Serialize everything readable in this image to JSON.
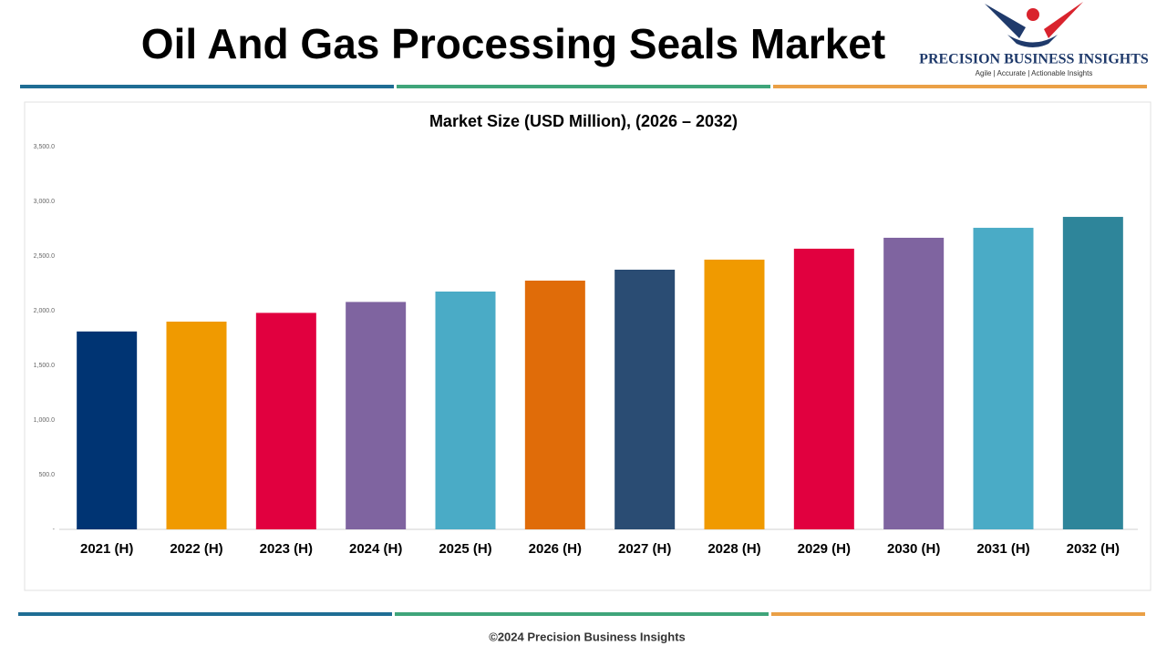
{
  "header": {
    "title": "Oil And Gas Processing Seals Market"
  },
  "logo": {
    "name": "PRECISION BUSINESS INSIGHTS",
    "tagline": "Agile | Accurate | Actionable Insights"
  },
  "footer": "©2024 Precision Business Insights",
  "chart_data": {
    "type": "bar",
    "title": "Market Size (USD Million), (2026 – 2032)",
    "categories": [
      "2021 (H)",
      "2022 (H)",
      "2023 (H)",
      "2024 (H)",
      "2025 (H)",
      "2026 (H)",
      "2027 (H)",
      "2028 (H)",
      "2029 (H)",
      "2030 (H)",
      "2031 (H)",
      "2032 (H)"
    ],
    "values": [
      1810,
      1900,
      1980,
      2080,
      2175,
      2275,
      2375,
      2467,
      2567,
      2667,
      2758,
      2858
    ],
    "colors": [
      "#003473",
      "#f09a00",
      "#e1003f",
      "#7f64a0",
      "#4aabc6",
      "#e06c09",
      "#2a4c73",
      "#f09a00",
      "#e1003f",
      "#7f64a0",
      "#4aabc6",
      "#2e859a"
    ],
    "ylim": [
      0,
      3500
    ],
    "yticks": [
      {
        "value": 0,
        "label": "-"
      },
      {
        "value": 500,
        "label": "500.0"
      },
      {
        "value": 1000,
        "label": "1,000.0"
      },
      {
        "value": 1500,
        "label": "1,500.0"
      },
      {
        "value": 2000,
        "label": "2,000.0"
      },
      {
        "value": 2500,
        "label": "2,500.0"
      },
      {
        "value": 3000,
        "label": "3,000.0"
      },
      {
        "value": 3500,
        "label": "3,500.0"
      }
    ],
    "grid": false
  }
}
